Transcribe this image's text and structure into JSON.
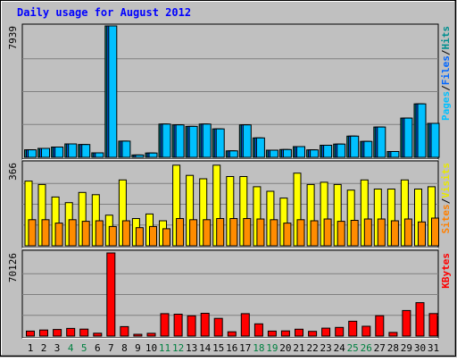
{
  "chart_data": {
    "type": "bar",
    "title": "Daily usage for August 2012",
    "categories": [
      "1",
      "2",
      "3",
      "4",
      "5",
      "6",
      "7",
      "8",
      "9",
      "10",
      "11",
      "12",
      "13",
      "14",
      "15",
      "16",
      "17",
      "18",
      "19",
      "20",
      "21",
      "22",
      "23",
      "24",
      "25",
      "26",
      "27",
      "28",
      "29",
      "30",
      "31"
    ],
    "weekend_days": [
      "4",
      "5",
      "11",
      "12",
      "18",
      "19",
      "25",
      "26"
    ],
    "panels": [
      {
        "id": "hits",
        "max_label": "7939",
        "ymax": 7939,
        "axis_label_parts": [
          "Pages",
          "/",
          "Files",
          "/",
          "Hits"
        ],
        "axis_label_colors": [
          "#00c0ff",
          "#000000",
          "#0066ff",
          "#000000",
          "#008f8f"
        ],
        "series": [
          {
            "color": "#008080",
            "values": [
              455,
              540,
              620,
              810,
              770,
              270,
              7939,
              980,
              140,
              260,
              2010,
              1960,
              1870,
              2010,
              1720,
              390,
              1960,
              1170,
              430,
              470,
              650,
              450,
              730,
              800,
              1280,
              960,
              1830,
              350,
              2370,
              3230,
              2050
            ]
          },
          {
            "color": "#0066ff",
            "values": [
              455,
              540,
              620,
              810,
              770,
              270,
              7939,
              980,
              140,
              260,
              2010,
              1960,
              1870,
              2010,
              1720,
              390,
              1960,
              1170,
              430,
              470,
              650,
              450,
              730,
              800,
              1280,
              960,
              1830,
              350,
              2370,
              3230,
              2050
            ]
          },
          {
            "color": "#00c0ff",
            "values": [
              455,
              540,
              620,
              810,
              770,
              270,
              7939,
              980,
              140,
              260,
              2010,
              1960,
              1870,
              2010,
              1720,
              390,
              1960,
              1170,
              430,
              470,
              650,
              450,
              730,
              800,
              1280,
              960,
              1830,
              350,
              2370,
              3230,
              2050
            ]
          }
        ]
      },
      {
        "id": "visits",
        "max_label": "366",
        "ymax": 366,
        "axis_label_parts": [
          "Sites",
          "/",
          "Visits"
        ],
        "axis_label_colors": [
          "#ff8000",
          "#000000",
          "#e8e800"
        ],
        "series": [
          {
            "color": "#ffff00",
            "values": [
              285,
              270,
              215,
              190,
              235,
              225,
              135,
              290,
              120,
              140,
              110,
              355,
              310,
              295,
              355,
              305,
              305,
              260,
              240,
              210,
              320,
              270,
              280,
              270,
              245,
              290,
              250,
              250,
              290,
              250,
              260
            ]
          },
          {
            "color": "#ff8c00",
            "values": [
              115,
              115,
              100,
              115,
              108,
              110,
              85,
              110,
              80,
              85,
              75,
              120,
              115,
              115,
              120,
              120,
              120,
              118,
              115,
              100,
              115,
              110,
              118,
              108,
              112,
              118,
              118,
              110,
              118,
              105,
              122
            ]
          }
        ]
      },
      {
        "id": "kbytes",
        "max_label": "70126",
        "ymax": 70126,
        "axis_label_parts": [
          "KBytes"
        ],
        "axis_label_colors": [
          "#ff0000"
        ],
        "series": [
          {
            "color": "#ff0000",
            "values": [
              4200,
              5100,
              5600,
              6500,
              5900,
              2400,
              70126,
              8000,
              1500,
              2300,
              18900,
              18500,
              17100,
              19200,
              14900,
              3600,
              18900,
              10300,
              4200,
              4400,
              5800,
              4000,
              6700,
              7300,
              12500,
              8300,
              17200,
              3100,
              21600,
              28200,
              19000
            ]
          }
        ]
      }
    ],
    "grid": true
  }
}
